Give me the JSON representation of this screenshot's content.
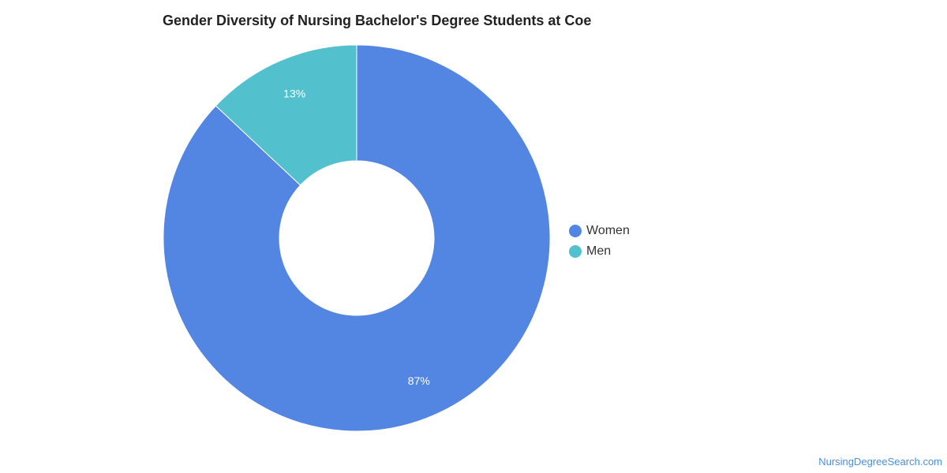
{
  "chart_data": {
    "type": "pie",
    "title": "Gender Diversity of Nursing Bachelor's Degree Students at Coe",
    "donut": true,
    "series": [
      {
        "name": "Women",
        "value": 87,
        "label": "87%",
        "color": "#5286e2"
      },
      {
        "name": "Men",
        "value": 13,
        "label": "13%",
        "color": "#52c1cd"
      }
    ],
    "legend_position": "right"
  },
  "footer": {
    "source": "NursingDegreeSearch.com"
  }
}
